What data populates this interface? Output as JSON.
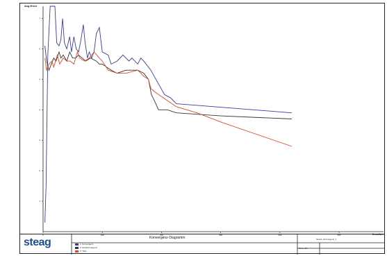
{
  "chart_data": {
    "type": "line",
    "title": "",
    "xlabel": "Iteration",
    "ylabel": "Avg Error",
    "xlim": [
      0,
      575
    ],
    "ylim": [
      0,
      7.4
    ],
    "x_ticks": [
      0,
      100,
      200,
      300,
      400,
      500
    ],
    "y_ticks": [
      1,
      2,
      3,
      4,
      5,
      6,
      7
    ],
    "grid": false,
    "series": [
      {
        "name": "1: Konvergenz",
        "color": "#3a3aa0",
        "points": [
          [
            3,
            0.3
          ],
          [
            5,
            1.5
          ],
          [
            8,
            5.8
          ],
          [
            12,
            7.4
          ],
          [
            20,
            7.4
          ],
          [
            23,
            6.2
          ],
          [
            27,
            6.1
          ],
          [
            30,
            6.3
          ],
          [
            33,
            7.0
          ],
          [
            36,
            6.2
          ],
          [
            40,
            6.0
          ],
          [
            45,
            6.4
          ],
          [
            48,
            5.9
          ],
          [
            52,
            6.4
          ],
          [
            56,
            6.0
          ],
          [
            60,
            5.9
          ],
          [
            64,
            6.3
          ],
          [
            68,
            6.8
          ],
          [
            71,
            6.2
          ],
          [
            75,
            5.7
          ],
          [
            78,
            5.9
          ],
          [
            82,
            5.7
          ],
          [
            86,
            5.9
          ],
          [
            90,
            6.5
          ],
          [
            95,
            6.7
          ],
          [
            100,
            5.9
          ],
          [
            110,
            5.8
          ],
          [
            115,
            5.5
          ],
          [
            125,
            5.6
          ],
          [
            135,
            5.8
          ],
          [
            145,
            5.6
          ],
          [
            150,
            5.7
          ],
          [
            160,
            5.5
          ],
          [
            165,
            5.7
          ],
          [
            170,
            5.6
          ],
          [
            182,
            5.3
          ],
          [
            205,
            4.5
          ],
          [
            215,
            4.4
          ],
          [
            225,
            4.2
          ],
          [
            420,
            3.9
          ]
        ]
      },
      {
        "name": "2: Restkonvergenz",
        "color": "#333333",
        "points": [
          [
            3,
            6.1
          ],
          [
            6,
            5.6
          ],
          [
            10,
            5.3
          ],
          [
            18,
            5.7
          ],
          [
            22,
            5.6
          ],
          [
            27,
            5.9
          ],
          [
            30,
            5.7
          ],
          [
            34,
            5.8
          ],
          [
            40,
            5.6
          ],
          [
            45,
            5.9
          ],
          [
            50,
            5.7
          ],
          [
            55,
            5.7
          ],
          [
            60,
            5.8
          ],
          [
            66,
            5.7
          ],
          [
            72,
            5.6
          ],
          [
            80,
            5.7
          ],
          [
            90,
            5.6
          ],
          [
            95,
            5.5
          ],
          [
            100,
            5.5
          ],
          [
            115,
            5.3
          ],
          [
            125,
            5.2
          ],
          [
            140,
            5.3
          ],
          [
            160,
            5.3
          ],
          [
            170,
            5.2
          ],
          [
            178,
            5.0
          ],
          [
            183,
            4.5
          ],
          [
            188,
            4.3
          ],
          [
            195,
            4.0
          ],
          [
            210,
            4.0
          ],
          [
            225,
            3.9
          ],
          [
            300,
            3.8
          ],
          [
            420,
            3.7
          ]
        ]
      },
      {
        "name": "3: Tiefe",
        "color": "#e04a2a",
        "points": [
          [
            3,
            5.7
          ],
          [
            6,
            5.3
          ],
          [
            10,
            5.5
          ],
          [
            15,
            5.6
          ],
          [
            18,
            5.4
          ],
          [
            24,
            5.8
          ],
          [
            28,
            5.5
          ],
          [
            34,
            5.7
          ],
          [
            40,
            5.6
          ],
          [
            46,
            5.6
          ],
          [
            52,
            5.5
          ],
          [
            58,
            5.9
          ],
          [
            62,
            5.7
          ],
          [
            70,
            5.6
          ],
          [
            78,
            5.7
          ],
          [
            86,
            5.9
          ],
          [
            95,
            5.7
          ],
          [
            100,
            5.6
          ],
          [
            110,
            5.3
          ],
          [
            125,
            5.2
          ],
          [
            140,
            5.2
          ],
          [
            160,
            5.3
          ],
          [
            170,
            5.1
          ],
          [
            178,
            5.0
          ],
          [
            182,
            4.7
          ],
          [
            188,
            4.6
          ],
          [
            195,
            4.5
          ],
          [
            210,
            4.3
          ],
          [
            225,
            4.1
          ],
          [
            260,
            3.9
          ],
          [
            300,
            3.6
          ],
          [
            360,
            3.2
          ],
          [
            420,
            2.8
          ]
        ]
      }
    ]
  },
  "footer": {
    "logo": "steag",
    "title": "Konvergenz-Diagramm",
    "top_right": "Seriell_Konvergenz_1",
    "bottom_mid": "Seite: 1/1"
  }
}
